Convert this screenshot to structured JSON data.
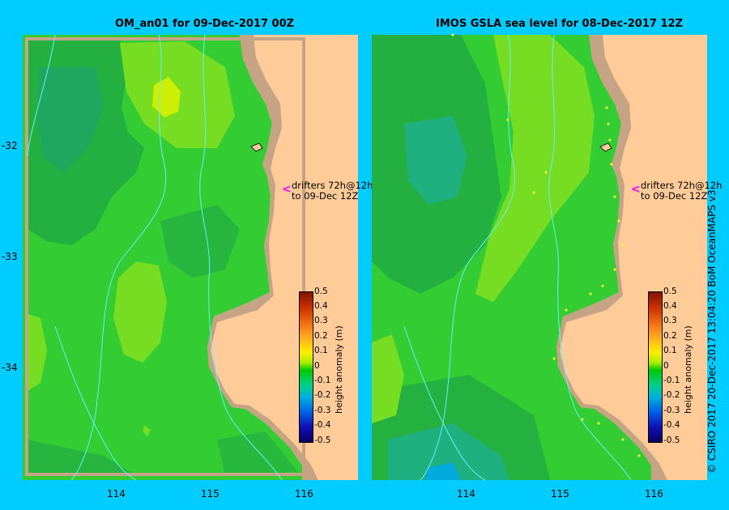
{
  "left_panel": {
    "title": "OM_an01  for 09-Dec-2017 00Z",
    "drifter_note": [
      "drifters 72h@12h",
      "to 09-Dec 12Z"
    ]
  },
  "right_panel": {
    "title": "IMOS  GSLA sea level   for 08-Dec-2017 12Z",
    "drifter_note": [
      "drifters 72h@12h",
      "to 09-Dec 12Z"
    ]
  },
  "axes": {
    "lat_ticks": [
      "-32",
      "-33",
      "-34"
    ],
    "lon_ticks": [
      "114",
      "115",
      "116"
    ]
  },
  "colorbar": {
    "label": "height anomaly  (m)",
    "ticks": [
      "0.5",
      "0.4",
      "0.3",
      "0.2",
      "0.1",
      "0",
      "-0.1",
      "-0.2",
      "-0.3",
      "-0.4",
      "-0.5"
    ],
    "range": [
      -0.5,
      0.5
    ]
  },
  "credit": "© CSIRO 2017   20-Dec-2017 13:04:20 BoM OceanMAPS v3",
  "colors": {
    "background": "#00ccff",
    "land": "#ffcc99",
    "shelf": "#c4a484",
    "ocean_base": "#33cc33",
    "contour": "#66eeff",
    "drifter_arrow": "#ff00ff"
  }
}
